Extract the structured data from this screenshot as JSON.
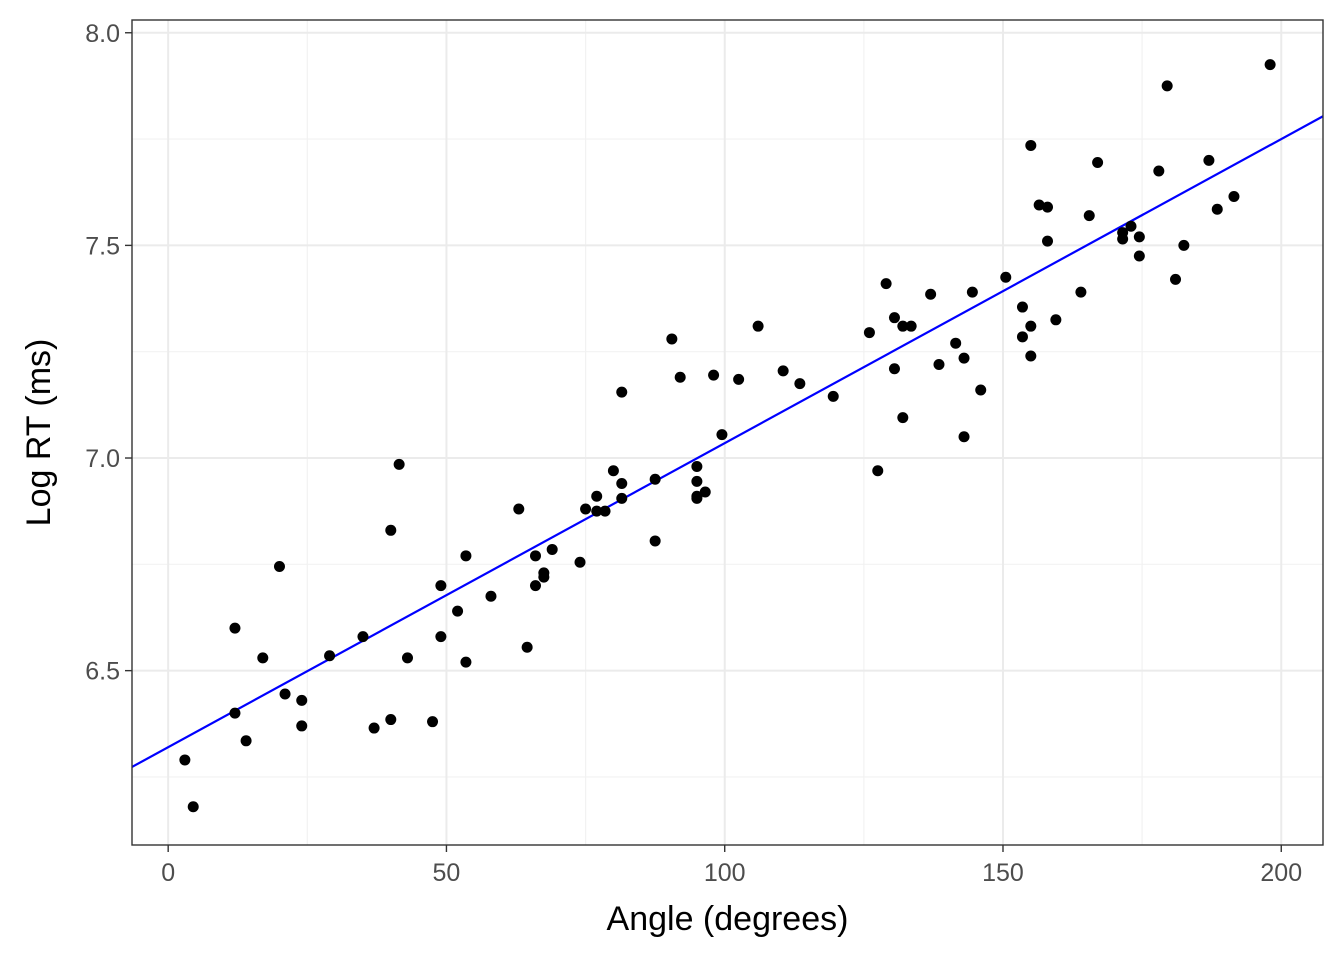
{
  "chart_data": {
    "type": "scatter",
    "title": "",
    "xlabel": "Angle (degrees)",
    "ylabel": "Log RT (ms)",
    "xlim": [
      -6.5,
      207.5
    ],
    "ylim": [
      6.09,
      8.03
    ],
    "x_ticks": [
      0,
      50,
      100,
      150,
      200
    ],
    "y_ticks": [
      6.5,
      7.0,
      7.5,
      8.0
    ],
    "x_tick_labels": [
      "0",
      "50",
      "100",
      "150",
      "200"
    ],
    "y_tick_labels": [
      "6.5",
      "7.0",
      "7.5",
      "8.0"
    ],
    "grid": true,
    "colors": {
      "points": "#000000",
      "fit_line": "#0000ff",
      "grid": "#ebebeb",
      "border": "#333333"
    },
    "fit_line": {
      "intercept": 6.32,
      "slope": 0.00715
    },
    "points": [
      [
        3,
        6.29
      ],
      [
        4.5,
        6.18
      ],
      [
        12,
        6.6
      ],
      [
        12,
        6.4
      ],
      [
        14,
        6.335
      ],
      [
        17,
        6.53
      ],
      [
        20,
        6.745
      ],
      [
        21,
        6.445
      ],
      [
        24,
        6.37
      ],
      [
        24,
        6.43
      ],
      [
        29,
        6.535
      ],
      [
        35,
        6.58
      ],
      [
        37,
        6.365
      ],
      [
        40,
        6.83
      ],
      [
        40,
        6.385
      ],
      [
        41.5,
        6.985
      ],
      [
        43,
        6.53
      ],
      [
        47.5,
        6.38
      ],
      [
        49,
        6.58
      ],
      [
        49,
        6.7
      ],
      [
        52,
        6.64
      ],
      [
        53.5,
        6.52
      ],
      [
        53.5,
        6.77
      ],
      [
        58,
        6.675
      ],
      [
        63,
        6.88
      ],
      [
        64.5,
        6.555
      ],
      [
        66,
        6.77
      ],
      [
        66,
        6.7
      ],
      [
        67.5,
        6.73
      ],
      [
        67.5,
        6.72
      ],
      [
        69,
        6.785
      ],
      [
        74,
        6.755
      ],
      [
        75,
        6.88
      ],
      [
        77,
        6.91
      ],
      [
        77,
        6.875
      ],
      [
        78.5,
        6.875
      ],
      [
        80,
        6.97
      ],
      [
        81.5,
        6.94
      ],
      [
        81.5,
        6.905
      ],
      [
        81.5,
        7.155
      ],
      [
        87.5,
        6.95
      ],
      [
        87.5,
        6.805
      ],
      [
        90.5,
        7.28
      ],
      [
        92,
        7.19
      ],
      [
        95,
        6.98
      ],
      [
        95,
        6.945
      ],
      [
        95,
        6.91
      ],
      [
        95,
        6.905
      ],
      [
        96.5,
        6.92
      ],
      [
        98,
        7.195
      ],
      [
        99.5,
        7.055
      ],
      [
        102.5,
        7.185
      ],
      [
        106,
        7.31
      ],
      [
        110.5,
        7.205
      ],
      [
        113.5,
        7.175
      ],
      [
        119.5,
        7.145
      ],
      [
        126,
        7.295
      ],
      [
        127.5,
        6.97
      ],
      [
        129,
        7.41
      ],
      [
        130.5,
        7.33
      ],
      [
        130.5,
        7.21
      ],
      [
        132,
        7.31
      ],
      [
        132,
        7.095
      ],
      [
        133.5,
        7.31
      ],
      [
        137,
        7.385
      ],
      [
        138.5,
        7.22
      ],
      [
        141.5,
        7.27
      ],
      [
        143,
        7.235
      ],
      [
        143,
        7.05
      ],
      [
        144.5,
        7.39
      ],
      [
        146,
        7.16
      ],
      [
        150.5,
        7.425
      ],
      [
        153.5,
        7.355
      ],
      [
        153.5,
        7.285
      ],
      [
        155,
        7.735
      ],
      [
        155,
        7.31
      ],
      [
        155,
        7.24
      ],
      [
        156.5,
        7.595
      ],
      [
        158,
        7.59
      ],
      [
        158,
        7.51
      ],
      [
        159.5,
        7.325
      ],
      [
        164,
        7.39
      ],
      [
        165.5,
        7.57
      ],
      [
        167,
        7.695
      ],
      [
        171.5,
        7.53
      ],
      [
        171.5,
        7.515
      ],
      [
        173,
        7.545
      ],
      [
        174.5,
        7.52
      ],
      [
        174.5,
        7.475
      ],
      [
        178,
        7.675
      ],
      [
        179.5,
        7.875
      ],
      [
        181,
        7.42
      ],
      [
        182.5,
        7.5
      ],
      [
        187,
        7.7
      ],
      [
        188.5,
        7.585
      ],
      [
        191.5,
        7.615
      ],
      [
        198,
        7.925
      ]
    ]
  }
}
